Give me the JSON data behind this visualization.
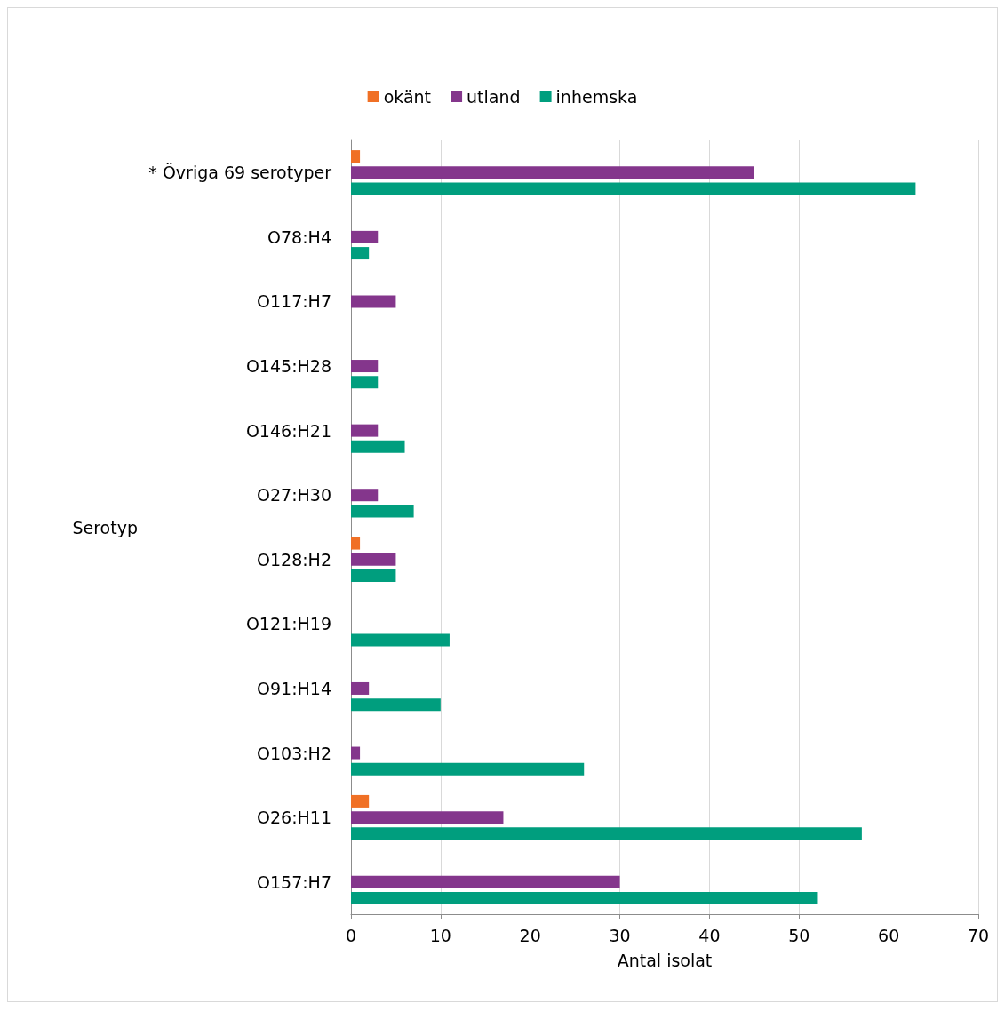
{
  "chart_data": {
    "type": "bar",
    "orientation": "horizontal",
    "xlabel": "Antal isolat",
    "ylabel": "Serotyp",
    "categories": [
      "* Övriga 69 serotyper",
      "O78:H4",
      "O117:H7",
      "O145:H28",
      "O146:H21",
      "O27:H30",
      "O128:H2",
      "O121:H19",
      "O91:H14",
      "O103:H2",
      "O26:H11",
      "O157:H7"
    ],
    "series": [
      {
        "name": "okänt",
        "color": "#f07025",
        "values": [
          1,
          null,
          null,
          null,
          null,
          null,
          1,
          null,
          null,
          null,
          2,
          null
        ]
      },
      {
        "name": "utland",
        "color": "#84368c",
        "values": [
          45,
          3,
          5,
          3,
          3,
          3,
          5,
          null,
          2,
          1,
          17,
          30
        ]
      },
      {
        "name": "inhemska",
        "color": "#009e7e",
        "values": [
          63,
          2,
          null,
          3,
          6,
          7,
          5,
          11,
          10,
          26,
          57,
          52
        ]
      }
    ],
    "xlim": [
      0,
      70
    ],
    "xticks": [
      0,
      10,
      20,
      30,
      40,
      50,
      60,
      70
    ],
    "grid": "x",
    "legend": "top"
  }
}
